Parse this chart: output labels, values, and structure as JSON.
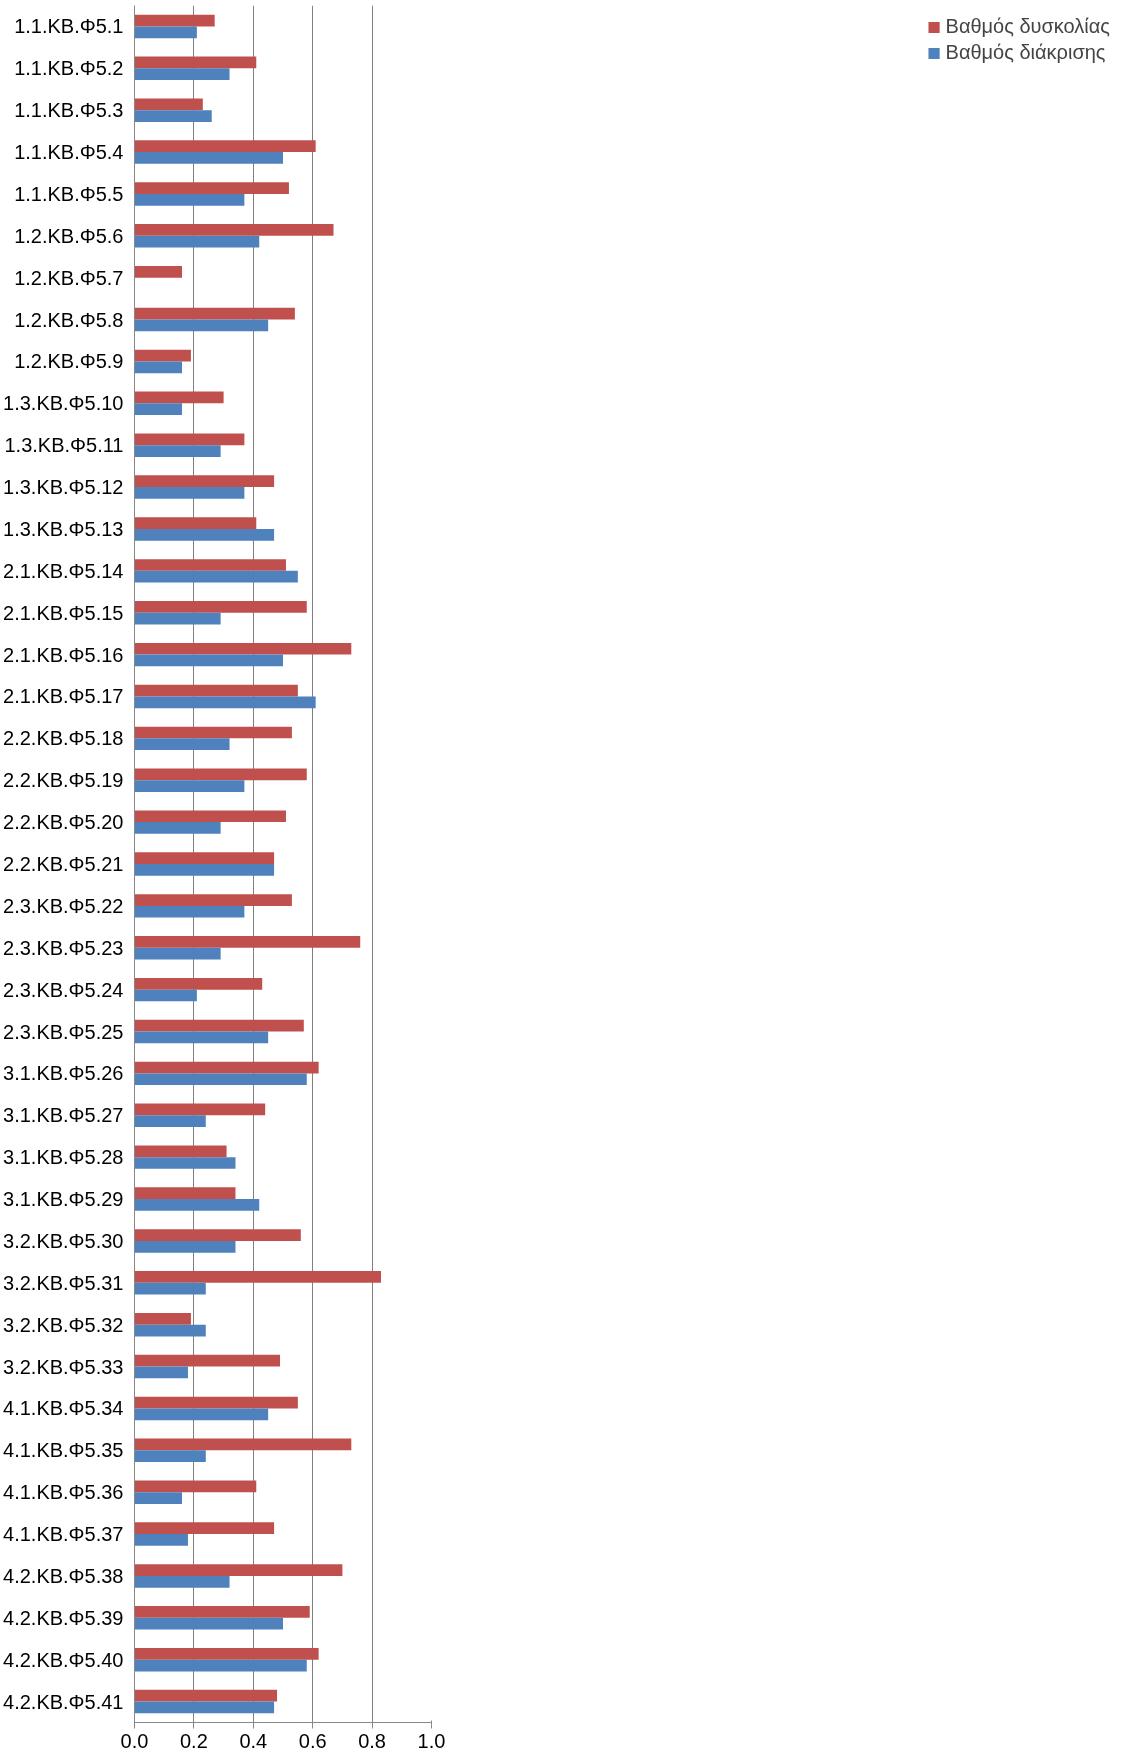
{
  "chart_data": {
    "type": "bar",
    "orientation": "horizontal",
    "categories": [
      "1.1.ΚΒ.Φ5.1",
      "1.1.ΚΒ.Φ5.2",
      "1.1.ΚΒ.Φ5.3",
      "1.1.ΚΒ.Φ5.4",
      "1.1.ΚΒ.Φ5.5",
      "1.2.ΚΒ.Φ5.6",
      "1.2.ΚΒ.Φ5.7",
      "1.2.ΚΒ.Φ5.8",
      "1.2.ΚΒ.Φ5.9",
      "1.3.ΚΒ.Φ5.10",
      "1.3.ΚΒ.Φ5.11",
      "1.3.ΚΒ.Φ5.12",
      "1.3.ΚΒ.Φ5.13",
      "2.1.ΚΒ.Φ5.14",
      "2.1.ΚΒ.Φ5.15",
      "2.1.ΚΒ.Φ5.16",
      "2.1.ΚΒ.Φ5.17",
      "2.2.ΚΒ.Φ5.18",
      "2.2.ΚΒ.Φ5.19",
      "2.2.ΚΒ.Φ5.20",
      "2.2.ΚΒ.Φ5.21",
      "2.3.ΚΒ.Φ5.22",
      "2.3.ΚΒ.Φ5.23",
      "2.3.ΚΒ.Φ5.24",
      "2.3.ΚΒ.Φ5.25",
      "3.1.ΚΒ.Φ5.26",
      "3.1.ΚΒ.Φ5.27",
      "3.1.ΚΒ.Φ5.28",
      "3.1.ΚΒ.Φ5.29",
      "3.2.ΚΒ.Φ5.30",
      "3.2.ΚΒ.Φ5.31",
      "3.2.ΚΒ.Φ5.32",
      "3.2.ΚΒ.Φ5.33",
      "4.1.ΚΒ.Φ5.34",
      "4.1.ΚΒ.Φ5.35",
      "4.1.ΚΒ.Φ5.36",
      "4.1.ΚΒ.Φ5.37",
      "4.2.ΚΒ.Φ5.38",
      "4.2.ΚΒ.Φ5.39",
      "4.2.ΚΒ.Φ5.40",
      "4.2.ΚΒ.Φ5.41"
    ],
    "series": [
      {
        "name": "Βαθμός δυσκολίας",
        "color": "#c0504d",
        "values": [
          0.27,
          0.41,
          0.23,
          0.61,
          0.52,
          0.67,
          0.16,
          0.54,
          0.19,
          0.3,
          0.37,
          0.47,
          0.41,
          0.51,
          0.58,
          0.73,
          0.55,
          0.53,
          0.58,
          0.51,
          0.47,
          0.53,
          0.76,
          0.43,
          0.57,
          0.62,
          0.44,
          0.31,
          0.34,
          0.56,
          0.83,
          0.19,
          0.49,
          0.55,
          0.73,
          0.41,
          0.47,
          0.7,
          0.59,
          0.62,
          0.48
        ]
      },
      {
        "name": "Βαθμός διάκρισης",
        "color": "#4f81bd",
        "values": [
          0.21,
          0.32,
          0.26,
          0.5,
          0.37,
          0.42,
          null,
          0.45,
          0.16,
          0.16,
          0.29,
          0.37,
          0.47,
          0.55,
          0.29,
          0.5,
          0.61,
          0.32,
          0.37,
          0.29,
          0.47,
          0.37,
          0.29,
          0.21,
          0.45,
          0.58,
          0.24,
          0.34,
          0.42,
          0.34,
          0.24,
          0.24,
          0.18,
          0.45,
          0.24,
          0.16,
          0.18,
          0.32,
          0.5,
          0.58,
          0.47
        ]
      }
    ],
    "xlim": [
      0,
      1
    ],
    "xticks": [
      {
        "value": 0,
        "label": "0.0"
      },
      0.2,
      0.4,
      0.6,
      0.8,
      {
        "value": 1,
        "label": "1.0"
      }
    ],
    "grid": "x",
    "legend": "right"
  }
}
